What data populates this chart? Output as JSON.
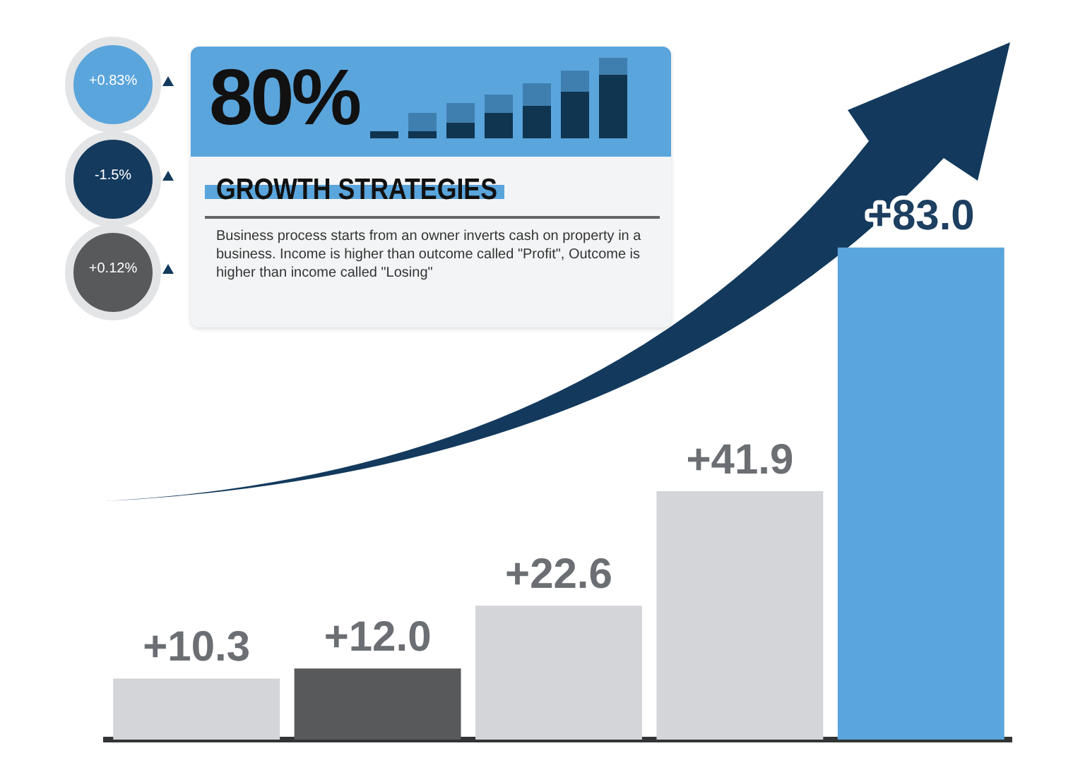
{
  "chart_data": {
    "type": "bar",
    "title": "GROWTH STRATEGIES",
    "categories": [
      null,
      null,
      null,
      null,
      null
    ],
    "values": [
      10.3,
      12.0,
      22.6,
      41.9,
      83.0
    ],
    "colors": [
      "#d3d5d8",
      "#58595b",
      "#d3d5d8",
      "#d3d5d8",
      "#5aa5dc"
    ],
    "value_labels": [
      "+10.3",
      "+12.0",
      "+22.6",
      "+41.9",
      "+83.0"
    ],
    "annotations": [
      "80%",
      "Business process starts from an owner inverts cash on property in a business. Income is higher than outcome called \"Profit\", Outcome is higher than income called \"Losing\"",
      "+0.83%",
      "-1.5%",
      "+0.12%"
    ]
  }
}
